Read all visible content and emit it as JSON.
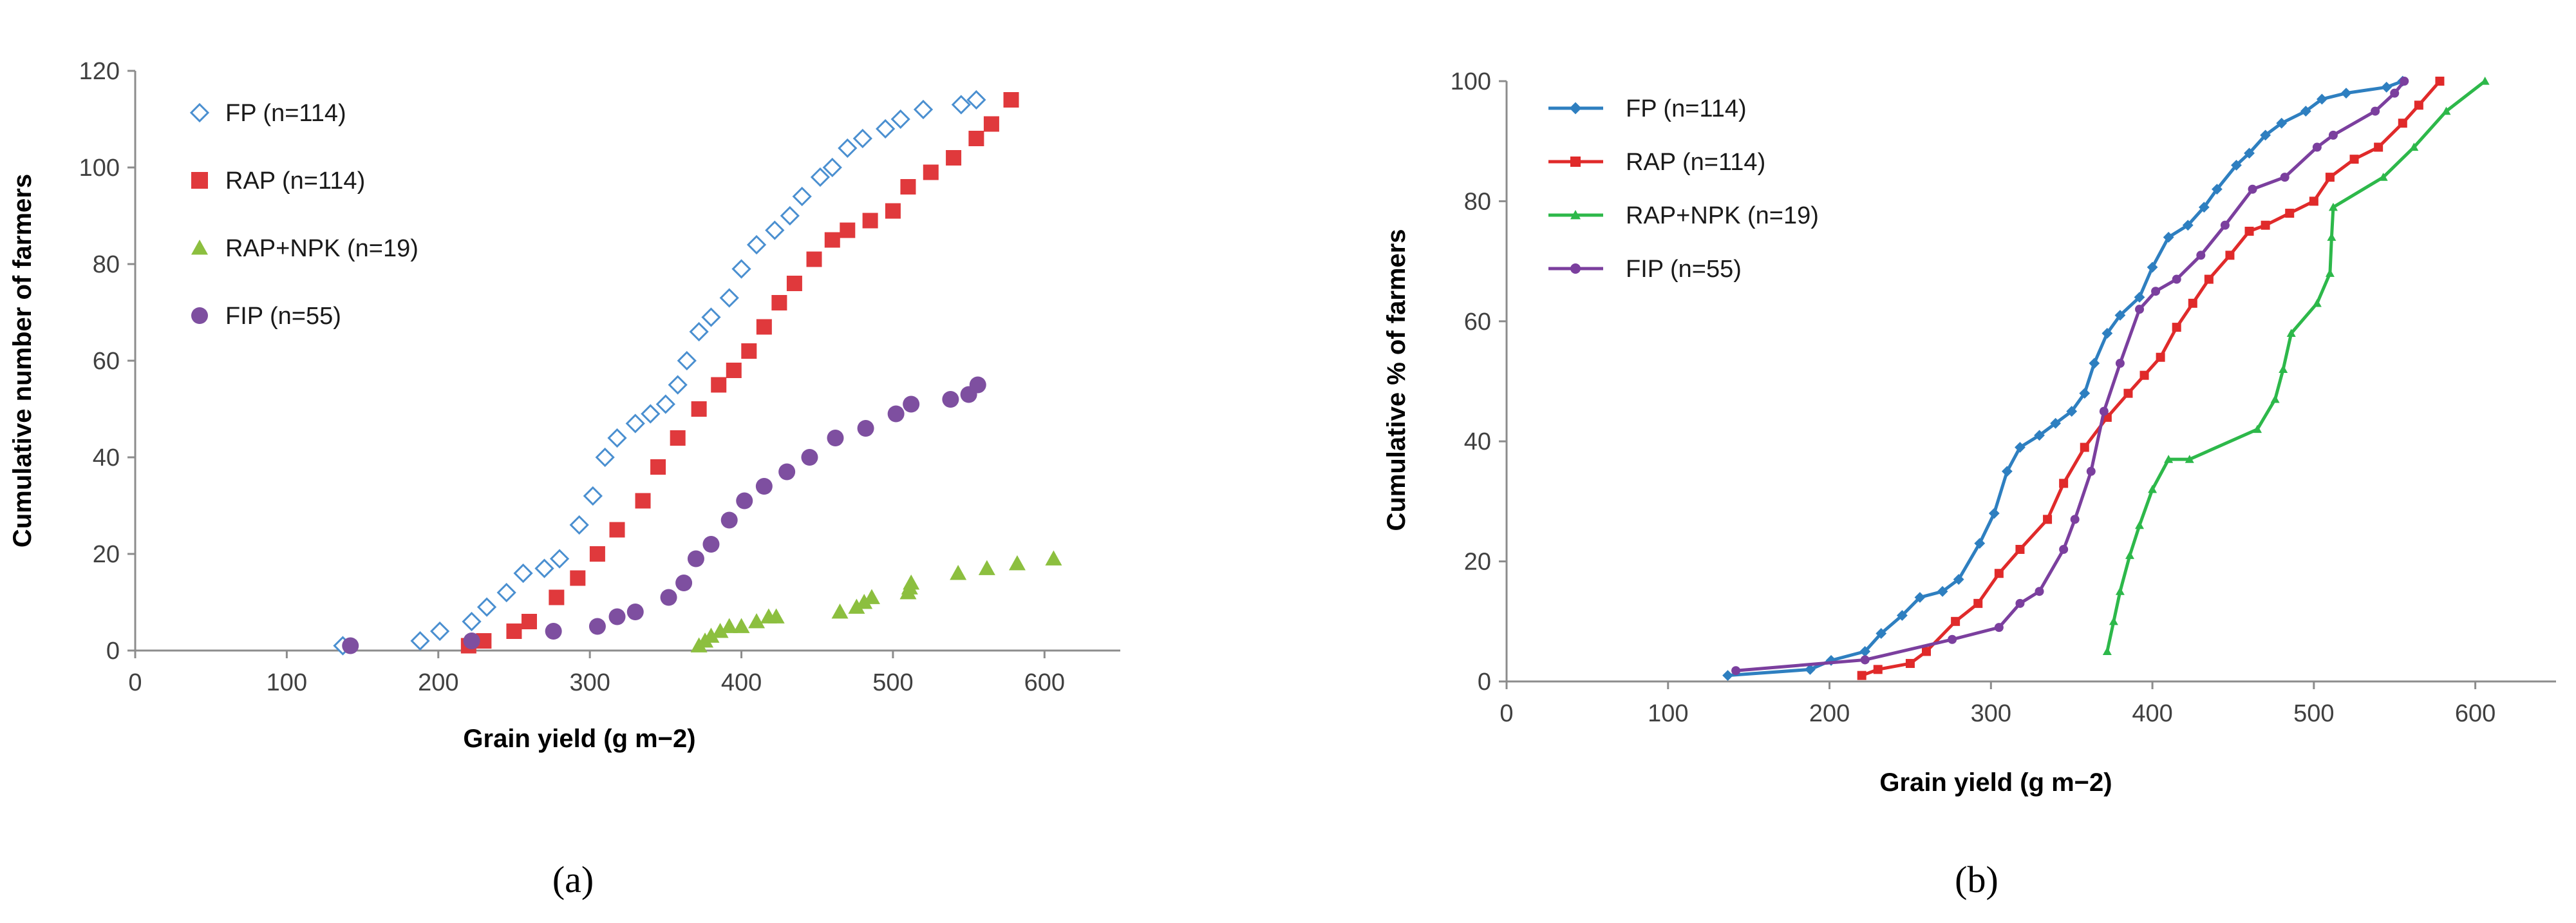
{
  "chart_data": [
    {
      "type": "scatter",
      "panel_label": "(a)",
      "xlabel": "Grain yield (g m−2)",
      "ylabel": "Cumulative number of farmers",
      "xlim": [
        0,
        650
      ],
      "ylim": [
        0,
        120
      ],
      "xticks": [
        "0",
        "100",
        "200",
        "300",
        "400",
        "500",
        "600"
      ],
      "yticks": [
        "0",
        "20",
        "40",
        "60",
        "80",
        "100",
        "120"
      ],
      "grid": false,
      "legend_position": "top-left",
      "series": [
        {
          "name": "FP (n=114)",
          "color": "#4a8fd0",
          "marker": "diamond-open",
          "x": [
            137,
            188,
            201,
            222,
            232,
            245,
            256,
            270,
            280,
            293,
            302,
            310,
            318,
            330,
            340,
            350,
            358,
            364,
            372,
            380,
            392,
            400,
            410,
            422,
            432,
            440,
            452,
            460,
            470,
            480,
            495,
            505,
            520,
            545,
            555
          ],
          "y": [
            1,
            2,
            4,
            6,
            9,
            12,
            16,
            17,
            19,
            26,
            32,
            40,
            44,
            47,
            49,
            51,
            55,
            60,
            66,
            69,
            73,
            79,
            84,
            87,
            90,
            94,
            98,
            100,
            104,
            106,
            108,
            110,
            112,
            113,
            114
          ]
        },
        {
          "name": "RAP (n=114)",
          "color": "#e0393c",
          "marker": "square",
          "x": [
            220,
            230,
            250,
            260,
            278,
            292,
            305,
            318,
            335,
            345,
            358,
            372,
            385,
            395,
            405,
            415,
            425,
            435,
            448,
            460,
            470,
            485,
            500,
            510,
            525,
            540,
            555,
            565,
            578
          ],
          "y": [
            1,
            2,
            4,
            6,
            11,
            15,
            20,
            25,
            31,
            38,
            44,
            50,
            55,
            58,
            62,
            67,
            72,
            76,
            81,
            85,
            87,
            89,
            91,
            96,
            99,
            102,
            106,
            109,
            114
          ]
        },
        {
          "name": "RAP+NPK (n=19)",
          "color": "#8cbf3f",
          "marker": "triangle",
          "x": [
            372,
            376,
            380,
            386,
            392,
            400,
            410,
            418,
            423,
            465,
            476,
            481,
            486,
            510,
            511,
            512,
            543,
            562,
            582,
            606
          ],
          "y": [
            1,
            2,
            3,
            4,
            5,
            5,
            6,
            7,
            7,
            8,
            9,
            10,
            11,
            12,
            13,
            14,
            16,
            17,
            18,
            19
          ]
        },
        {
          "name": "FIP (n=55)",
          "color": "#7e4fa0",
          "marker": "circle",
          "x": [
            142,
            222,
            276,
            305,
            318,
            330,
            352,
            362,
            370,
            380,
            392,
            402,
            415,
            430,
            445,
            462,
            482,
            502,
            512,
            538,
            550,
            556
          ],
          "y": [
            1,
            2,
            4,
            5,
            7,
            8,
            11,
            14,
            19,
            22,
            27,
            31,
            34,
            37,
            40,
            44,
            46,
            49,
            51,
            52,
            53,
            55
          ]
        }
      ]
    },
    {
      "type": "line",
      "panel_label": "(b)",
      "xlabel": "Grain yield (g m−2)",
      "ylabel": "Cumulative % of farmers",
      "xlim": [
        0,
        650
      ],
      "ylim": [
        0,
        100
      ],
      "xticks": [
        "0",
        "100",
        "200",
        "300",
        "400",
        "500",
        "600"
      ],
      "yticks": [
        "0",
        "20",
        "40",
        "60",
        "80",
        "100"
      ],
      "grid": false,
      "legend_position": "top-left",
      "series": [
        {
          "name": "FP (n=114)",
          "color": "#2e7fc0",
          "marker": "diamond",
          "x": [
            137,
            188,
            201,
            222,
            232,
            245,
            256,
            270,
            280,
            293,
            302,
            310,
            318,
            330,
            340,
            350,
            358,
            364,
            372,
            380,
            392,
            400,
            410,
            422,
            432,
            440,
            452,
            460,
            470,
            480,
            495,
            505,
            520,
            545,
            555
          ],
          "y": [
            1,
            2,
            3.5,
            5,
            8,
            11,
            14,
            15,
            17,
            23,
            28,
            35,
            39,
            41,
            43,
            45,
            48,
            53,
            58,
            61,
            64,
            69,
            74,
            76,
            79,
            82,
            86,
            88,
            91,
            93,
            95,
            97,
            98,
            99,
            100
          ]
        },
        {
          "name": "RAP (n=114)",
          "color": "#e02a2a",
          "marker": "square",
          "x": [
            220,
            230,
            250,
            260,
            278,
            292,
            305,
            318,
            335,
            345,
            358,
            372,
            385,
            395,
            405,
            415,
            425,
            435,
            448,
            460,
            470,
            485,
            500,
            510,
            525,
            540,
            555,
            565,
            578
          ],
          "y": [
            1,
            2,
            3,
            5,
            10,
            13,
            18,
            22,
            27,
            33,
            39,
            44,
            48,
            51,
            54,
            59,
            63,
            67,
            71,
            75,
            76,
            78,
            80,
            84,
            87,
            89,
            93,
            96,
            100
          ]
        },
        {
          "name": "RAP+NPK (n=19)",
          "color": "#2db84a",
          "marker": "triangle",
          "x": [
            372,
            376,
            380,
            386,
            392,
            400,
            410,
            423,
            465,
            476,
            481,
            486,
            502,
            510,
            511,
            512,
            543,
            562,
            582,
            606
          ],
          "y": [
            5,
            10,
            15,
            21,
            26,
            32,
            37,
            37,
            42,
            47,
            52,
            58,
            63,
            68,
            74,
            79,
            84,
            89,
            95,
            100
          ]
        },
        {
          "name": "FIP (n=55)",
          "color": "#7b3f9e",
          "marker": "circle",
          "x": [
            142,
            222,
            276,
            305,
            318,
            330,
            345,
            352,
            362,
            370,
            380,
            392,
            402,
            415,
            430,
            445,
            462,
            482,
            502,
            512,
            538,
            550,
            556
          ],
          "y": [
            1.8,
            3.6,
            7,
            9,
            13,
            15,
            22,
            27,
            35,
            45,
            53,
            62,
            65,
            67,
            71,
            76,
            82,
            84,
            89,
            91,
            95,
            98,
            100
          ]
        }
      ]
    }
  ]
}
